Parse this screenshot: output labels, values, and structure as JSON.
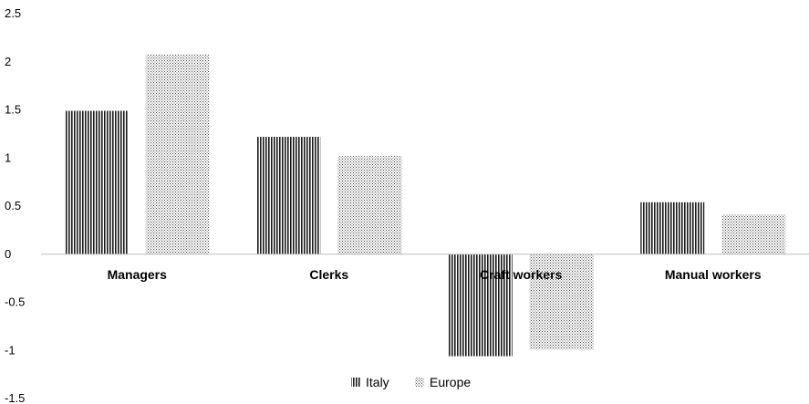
{
  "chart_data": {
    "type": "bar",
    "categories": [
      "Managers",
      "Clerks",
      "Craft workers",
      "Manual workers"
    ],
    "series": [
      {
        "name": "Italy",
        "values": [
          1.49,
          1.22,
          -1.06,
          0.54
        ],
        "pattern": "vertical-stripes",
        "color": "#000000"
      },
      {
        "name": "Europe",
        "values": [
          2.08,
          1.02,
          -0.99,
          0.41
        ],
        "pattern": "dots",
        "color": "#555555"
      }
    ],
    "yticks": [
      "2.5",
      "2",
      "1.5",
      "1",
      "0.5",
      "0",
      "-0.5",
      "-1",
      "-1.5"
    ],
    "ylim": [
      -1.5,
      2.5
    ],
    "grid": false,
    "legend_position": "bottom"
  }
}
